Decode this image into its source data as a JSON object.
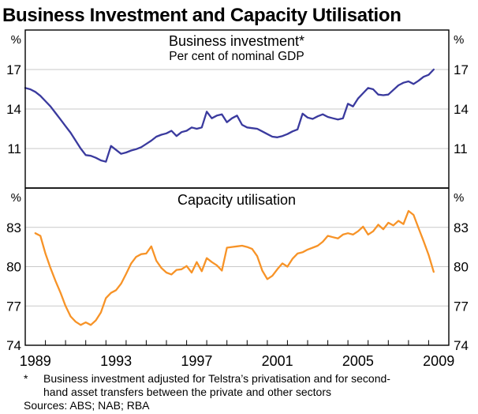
{
  "title": "Business Investment and Capacity Utilisation",
  "colors": {
    "grid": "#c9c9c9",
    "axis": "#000000",
    "investment_blue": "#3A3A9E",
    "capacity_orange": "#F79327"
  },
  "x_axis": {
    "range": [
      1989,
      2010
    ],
    "tick_step": 1,
    "labels": [
      "1989",
      "1993",
      "1997",
      "2001",
      "2005",
      "2009"
    ]
  },
  "chart_data": [
    {
      "type": "line",
      "panel": "top",
      "title": "Business investment*",
      "subtitle": "Per cent of nominal GDP",
      "unit": "%",
      "ylim": [
        8,
        20
      ],
      "yticks": [
        17,
        14,
        11
      ],
      "grid": true,
      "series": [
        {
          "id": "business-investment",
          "name": "Business investment (per cent of nominal GDP)",
          "color": "#3A3A9E",
          "x_start": 1989.0,
          "x_step": 0.25,
          "values": [
            15.6,
            15.5,
            15.3,
            15.0,
            14.6,
            14.2,
            13.7,
            13.2,
            12.7,
            12.2,
            11.6,
            11.0,
            10.5,
            10.45,
            10.3,
            10.1,
            10.0,
            11.2,
            10.9,
            10.6,
            10.7,
            10.85,
            10.95,
            11.1,
            11.35,
            11.6,
            11.9,
            12.05,
            12.15,
            12.35,
            11.95,
            12.25,
            12.35,
            12.6,
            12.5,
            12.6,
            13.8,
            13.3,
            13.5,
            13.6,
            13.0,
            13.3,
            13.5,
            12.8,
            12.6,
            12.55,
            12.5,
            12.3,
            12.1,
            11.9,
            11.85,
            11.95,
            12.1,
            12.3,
            12.45,
            13.65,
            13.35,
            13.25,
            13.45,
            13.6,
            13.4,
            13.3,
            13.2,
            13.3,
            14.4,
            14.2,
            14.8,
            15.2,
            15.6,
            15.5,
            15.1,
            15.05,
            15.1,
            15.45,
            15.8,
            16.0,
            16.1,
            15.9,
            16.15,
            16.45,
            16.6,
            17.0
          ]
        }
      ]
    },
    {
      "type": "line",
      "panel": "bottom",
      "title": "Capacity utilisation",
      "subtitle": "",
      "unit": "%",
      "ylim": [
        74,
        86
      ],
      "yticks": [
        83,
        80,
        77,
        74
      ],
      "grid": true,
      "series": [
        {
          "id": "capacity-utilisation",
          "name": "Capacity utilisation (per cent)",
          "color": "#F79327",
          "x_start": 1989.5,
          "x_step": 0.25,
          "values": [
            82.55,
            82.35,
            81.0,
            79.9,
            78.9,
            78.0,
            77.0,
            76.2,
            75.8,
            75.55,
            75.75,
            75.55,
            75.9,
            76.5,
            77.6,
            78.0,
            78.2,
            78.7,
            79.45,
            80.25,
            80.75,
            80.95,
            81.0,
            81.55,
            80.45,
            79.9,
            79.55,
            79.4,
            79.75,
            79.8,
            80.05,
            79.55,
            80.35,
            79.65,
            80.65,
            80.35,
            80.1,
            79.7,
            81.45,
            81.5,
            81.55,
            81.6,
            81.5,
            81.35,
            80.8,
            79.7,
            79.05,
            79.3,
            79.8,
            80.25,
            80.0,
            80.6,
            81.0,
            81.1,
            81.3,
            81.45,
            81.6,
            81.9,
            82.35,
            82.25,
            82.15,
            82.45,
            82.55,
            82.45,
            82.7,
            83.05,
            82.45,
            82.7,
            83.2,
            82.85,
            83.35,
            83.15,
            83.5,
            83.25,
            84.25,
            83.95,
            82.95,
            81.95,
            80.9,
            79.6
          ]
        }
      ]
    }
  ],
  "footnote": {
    "marker": "*",
    "lines": [
      "Business investment adjusted for Telstra’s privatisation and for second-",
      "hand asset transfers between the private and other sectors"
    ]
  },
  "sources": "Sources: ABS; NAB; RBA"
}
